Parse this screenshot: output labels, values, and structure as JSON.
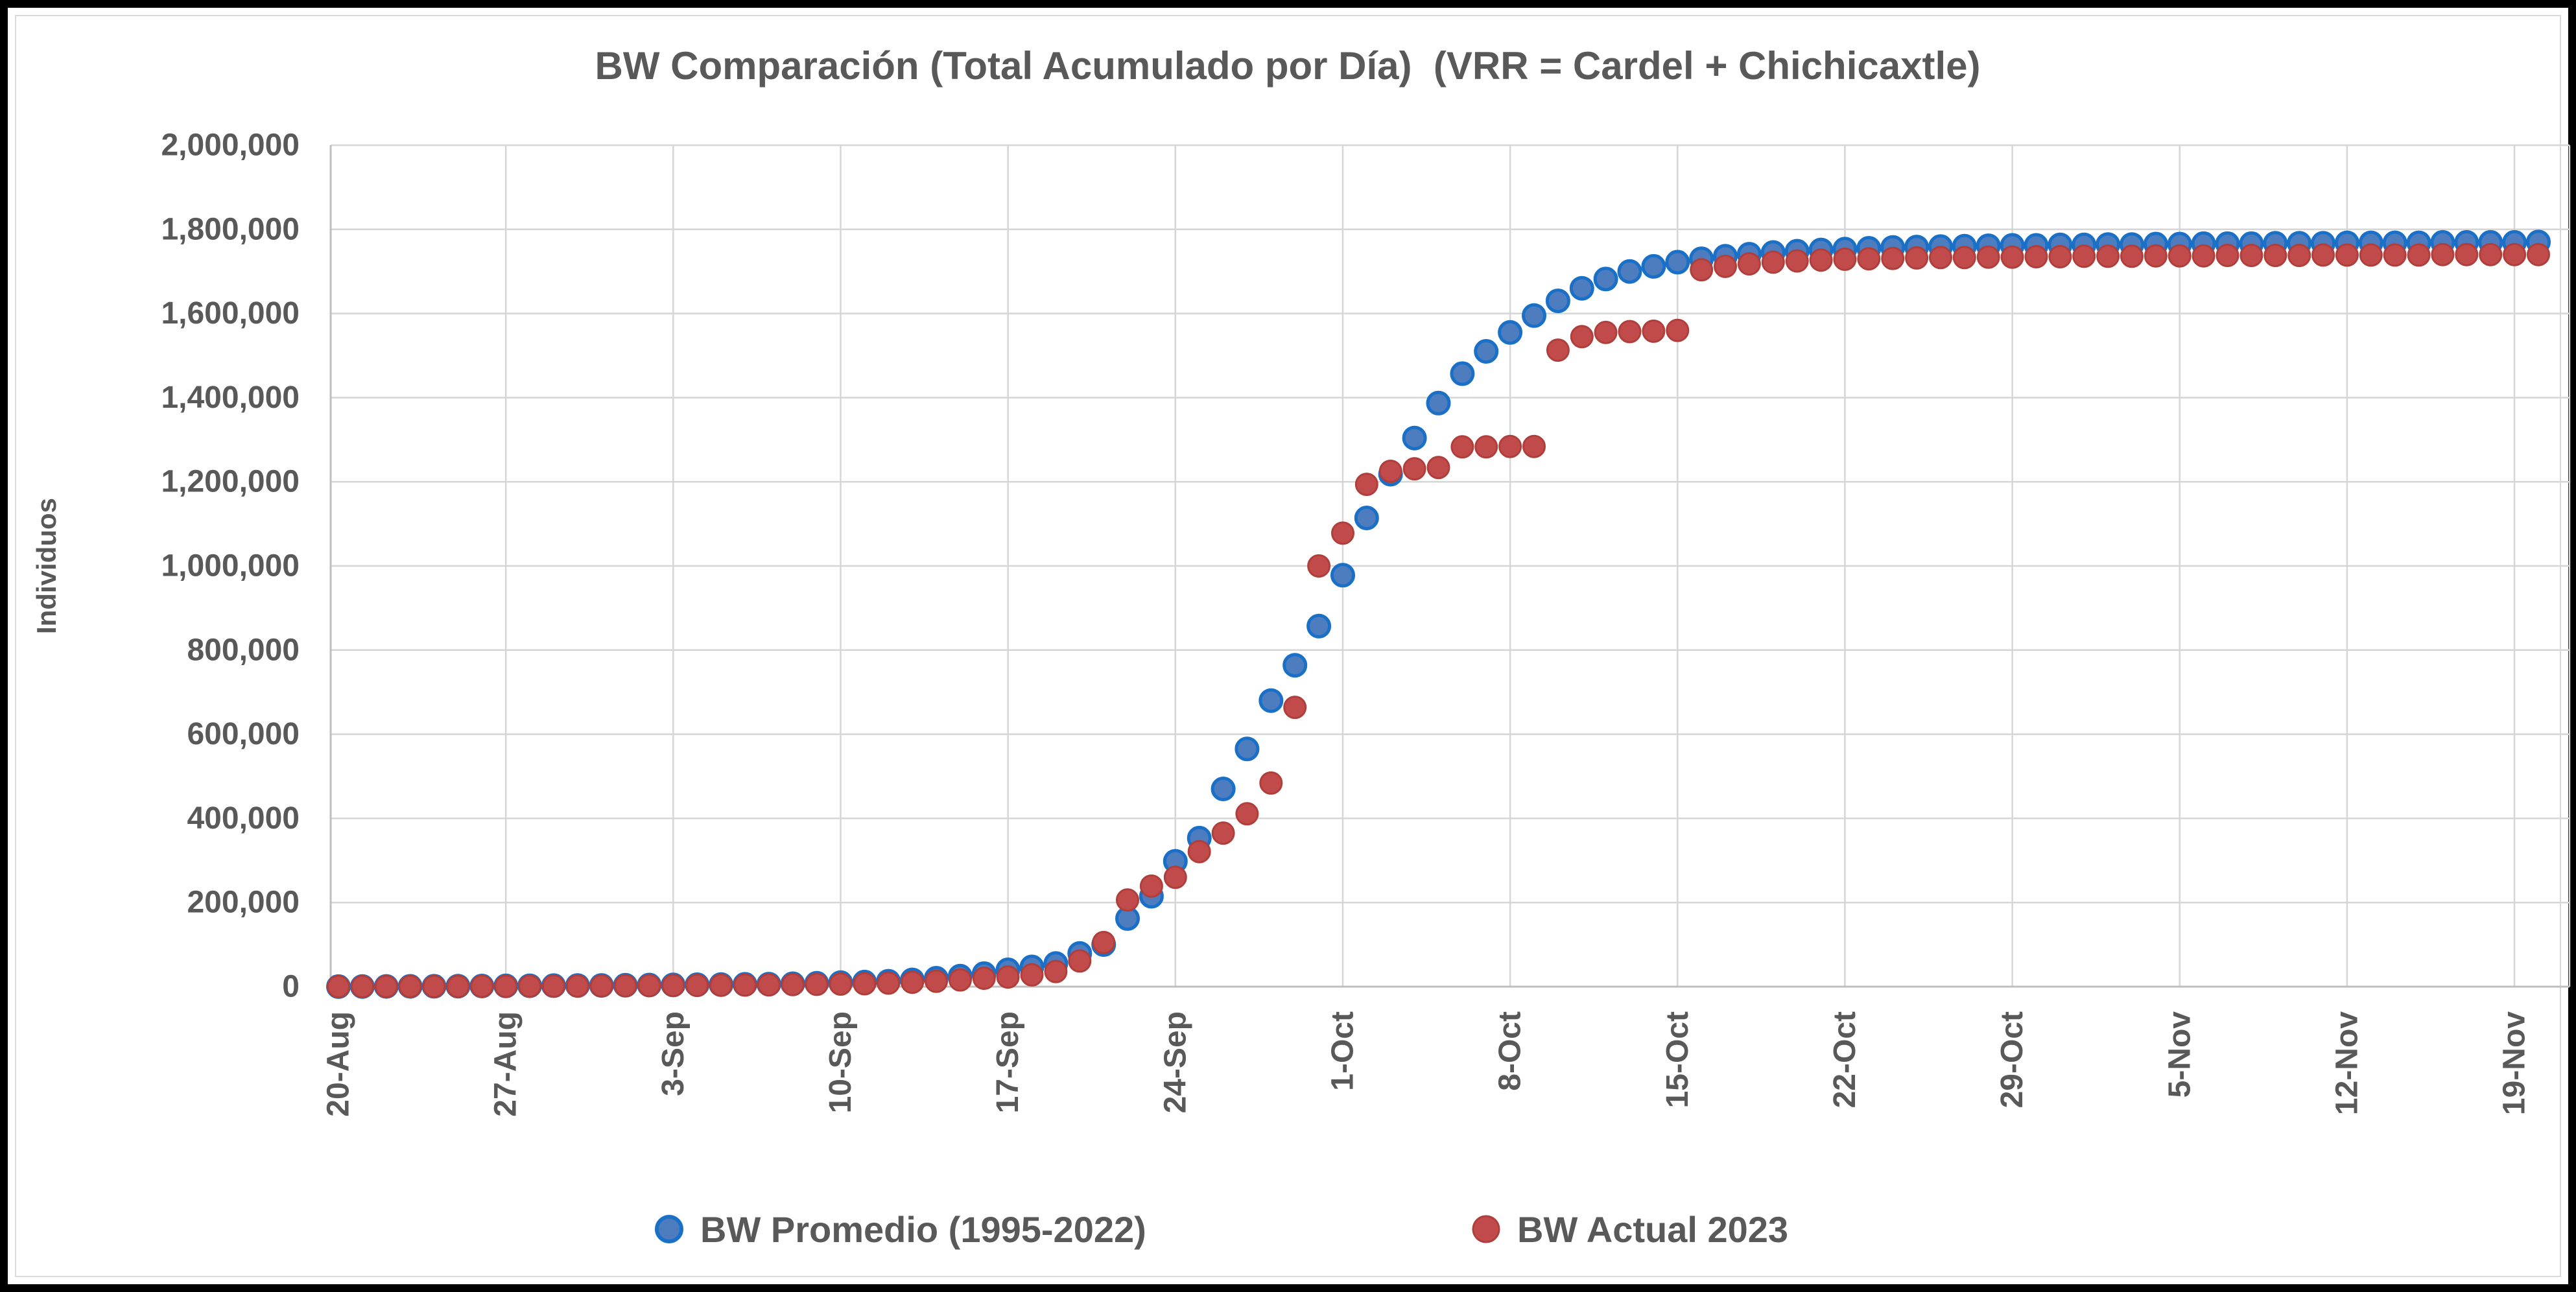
{
  "title": "BW Comparación (Total Acumulado por Día)  (VRR = Cardel + Chichicaxtle)",
  "y_axis": {
    "title": "Individuos",
    "min": 0,
    "max": 2000000,
    "step": 200000,
    "tick_labels": [
      "0",
      "200,000",
      "400,000",
      "600,000",
      "800,000",
      "1,000,000",
      "1,200,000",
      "1,400,000",
      "1,600,000",
      "1,800,000",
      "2,000,000"
    ]
  },
  "x_axis": {
    "tick_labels": [
      "20-Aug",
      "27-Aug",
      "3-Sep",
      "10-Sep",
      "17-Sep",
      "24-Sep",
      "1-Oct",
      "8-Oct",
      "15-Oct",
      "22-Oct",
      "29-Oct",
      "5-Nov",
      "12-Nov",
      "19-Nov"
    ]
  },
  "legend": {
    "items": [
      {
        "label": "BW Promedio (1995-2022)",
        "color": "#4d7dbf"
      },
      {
        "label": "BW Actual 2023",
        "color": "#c14b4b"
      }
    ],
    "position": "bottom"
  },
  "colors": {
    "background": "#ffffff",
    "outer_border": "#000000",
    "inner_border": "#d9d9d9",
    "gridline": "#d6d6d6",
    "axis": "#bfbfbf",
    "text": "#595959",
    "promedio_fill": "#4d7dbf",
    "promedio_stroke": "#1a6fc7",
    "actual_fill": "#c14b4b",
    "actual_stroke": "#b03f3c"
  },
  "chart_data": {
    "type": "scatter",
    "title": "BW Comparación (Total Acumulado por Día)  (VRR = Cardel + Chichicaxtle)",
    "xlabel": "",
    "ylabel": "Individuos",
    "ylim": [
      0,
      2000000
    ],
    "grid": true,
    "legend_position": "bottom",
    "x": [
      "20-Aug",
      "21-Aug",
      "22-Aug",
      "23-Aug",
      "24-Aug",
      "25-Aug",
      "26-Aug",
      "27-Aug",
      "28-Aug",
      "29-Aug",
      "30-Aug",
      "31-Aug",
      "1-Sep",
      "2-Sep",
      "3-Sep",
      "4-Sep",
      "5-Sep",
      "6-Sep",
      "7-Sep",
      "8-Sep",
      "9-Sep",
      "10-Sep",
      "11-Sep",
      "12-Sep",
      "13-Sep",
      "14-Sep",
      "15-Sep",
      "16-Sep",
      "17-Sep",
      "18-Sep",
      "19-Sep",
      "20-Sep",
      "21-Sep",
      "22-Sep",
      "23-Sep",
      "24-Sep",
      "25-Sep",
      "26-Sep",
      "27-Sep",
      "28-Sep",
      "29-Sep",
      "30-Sep",
      "1-Oct",
      "2-Oct",
      "3-Oct",
      "4-Oct",
      "5-Oct",
      "6-Oct",
      "7-Oct",
      "8-Oct",
      "9-Oct",
      "10-Oct",
      "11-Oct",
      "12-Oct",
      "13-Oct",
      "14-Oct",
      "15-Oct",
      "16-Oct",
      "17-Oct",
      "18-Oct",
      "19-Oct",
      "20-Oct",
      "21-Oct",
      "22-Oct",
      "23-Oct",
      "24-Oct",
      "25-Oct",
      "26-Oct",
      "27-Oct",
      "28-Oct",
      "29-Oct",
      "30-Oct",
      "31-Oct",
      "1-Nov",
      "2-Nov",
      "3-Nov",
      "4-Nov",
      "5-Nov",
      "6-Nov",
      "7-Nov",
      "8-Nov",
      "9-Nov",
      "10-Nov",
      "11-Nov",
      "12-Nov",
      "13-Nov",
      "14-Nov",
      "15-Nov",
      "16-Nov",
      "17-Nov",
      "18-Nov",
      "19-Nov",
      "20-Nov"
    ],
    "series": [
      {
        "name": "BW Promedio (1995-2022)",
        "color": "#4d7dbf",
        "values": [
          200,
          400,
          600,
          800,
          1000,
          1200,
          1500,
          1800,
          2100,
          2400,
          2700,
          3000,
          3400,
          3800,
          4200,
          4600,
          5000,
          5500,
          6000,
          7000,
          8000,
          9500,
          11000,
          13000,
          16000,
          20000,
          25000,
          31000,
          40000,
          47000,
          55000,
          79000,
          100000,
          162000,
          215000,
          298000,
          353000,
          470000,
          565000,
          680000,
          764000,
          857000,
          978000,
          1114000,
          1218000,
          1304000,
          1387000,
          1457000,
          1510000,
          1555000,
          1595000,
          1630000,
          1660000,
          1682000,
          1700000,
          1712000,
          1722000,
          1730000,
          1736000,
          1741000,
          1745000,
          1748000,
          1751000,
          1753000,
          1755000,
          1757000,
          1758000,
          1759000,
          1760000,
          1761000,
          1762000,
          1762000,
          1763000,
          1763000,
          1764000,
          1764000,
          1765000,
          1765000,
          1766000,
          1766000,
          1766000,
          1767000,
          1767000,
          1767000,
          1768000,
          1768000,
          1768000,
          1768000,
          1769000,
          1769000,
          1769000,
          1769000,
          1770000
        ]
      },
      {
        "name": "BW Actual 2023",
        "color": "#c14b4b",
        "values": [
          100,
          200,
          300,
          400,
          500,
          600,
          800,
          1000,
          1200,
          1400,
          1600,
          1900,
          2200,
          2500,
          2800,
          3100,
          3500,
          3900,
          4400,
          4900,
          5500,
          6200,
          7000,
          8500,
          10500,
          13000,
          16000,
          20000,
          23000,
          28000,
          36000,
          61000,
          105000,
          206000,
          239000,
          260000,
          321000,
          365000,
          411000,
          484000,
          664000,
          1000000,
          1078000,
          1194000,
          1225000,
          1231000,
          1234000,
          1283000,
          1283000,
          1284000,
          1284000,
          1513000,
          1545000,
          1555000,
          1557000,
          1558000,
          1560000,
          1704000,
          1712000,
          1718000,
          1722000,
          1725000,
          1727000,
          1729000,
          1730000,
          1731000,
          1732000,
          1733000,
          1733000,
          1734000,
          1734000,
          1735000,
          1735000,
          1736000,
          1736000,
          1736000,
          1737000,
          1737000,
          1737000,
          1738000,
          1738000,
          1738000,
          1738000,
          1739000,
          1739000,
          1739000,
          1739000,
          1739000,
          1740000,
          1740000,
          1740000,
          1740000,
          1740000
        ]
      }
    ]
  }
}
